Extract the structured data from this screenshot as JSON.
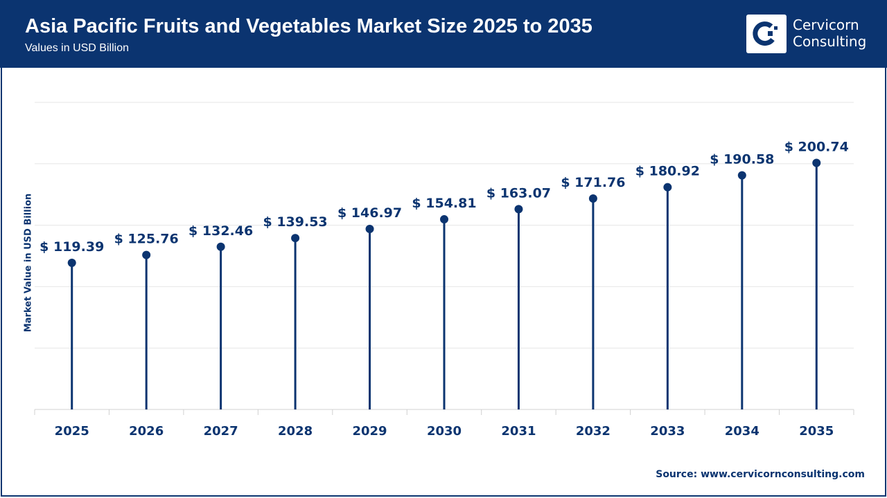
{
  "header": {
    "title": "Asia Pacific Fruits and Vegetables Market Size 2025 to 2035",
    "subtitle": "Values in USD Billion",
    "logo_line1": "Cervicorn",
    "logo_line2": "Consulting"
  },
  "source": "Source: www.cervicornconsulting.com",
  "colors": {
    "primary": "#0b3470",
    "grid": "#e6e6e6"
  },
  "chart_data": {
    "type": "lollipop",
    "title": "Asia Pacific Fruits and Vegetables Market Size 2025 to 2035",
    "ylabel": "Market Value in USD Billion",
    "xlabel": "",
    "categories": [
      "2025",
      "2026",
      "2027",
      "2028",
      "2029",
      "2030",
      "2031",
      "2032",
      "2033",
      "2034",
      "2035"
    ],
    "values": [
      119.39,
      125.76,
      132.46,
      139.53,
      146.97,
      154.81,
      163.07,
      171.76,
      180.92,
      190.58,
      200.74
    ],
    "data_labels": [
      "$ 119.39",
      "$ 125.76",
      "$ 132.46",
      "$ 139.53",
      "$ 146.97",
      "$ 154.81",
      "$ 163.07",
      "$ 171.76",
      "$ 180.92",
      "$ 190.58",
      "$ 200.74"
    ],
    "ylim": [
      0,
      250
    ],
    "grid": true,
    "y_tick_labels_shown": false
  }
}
